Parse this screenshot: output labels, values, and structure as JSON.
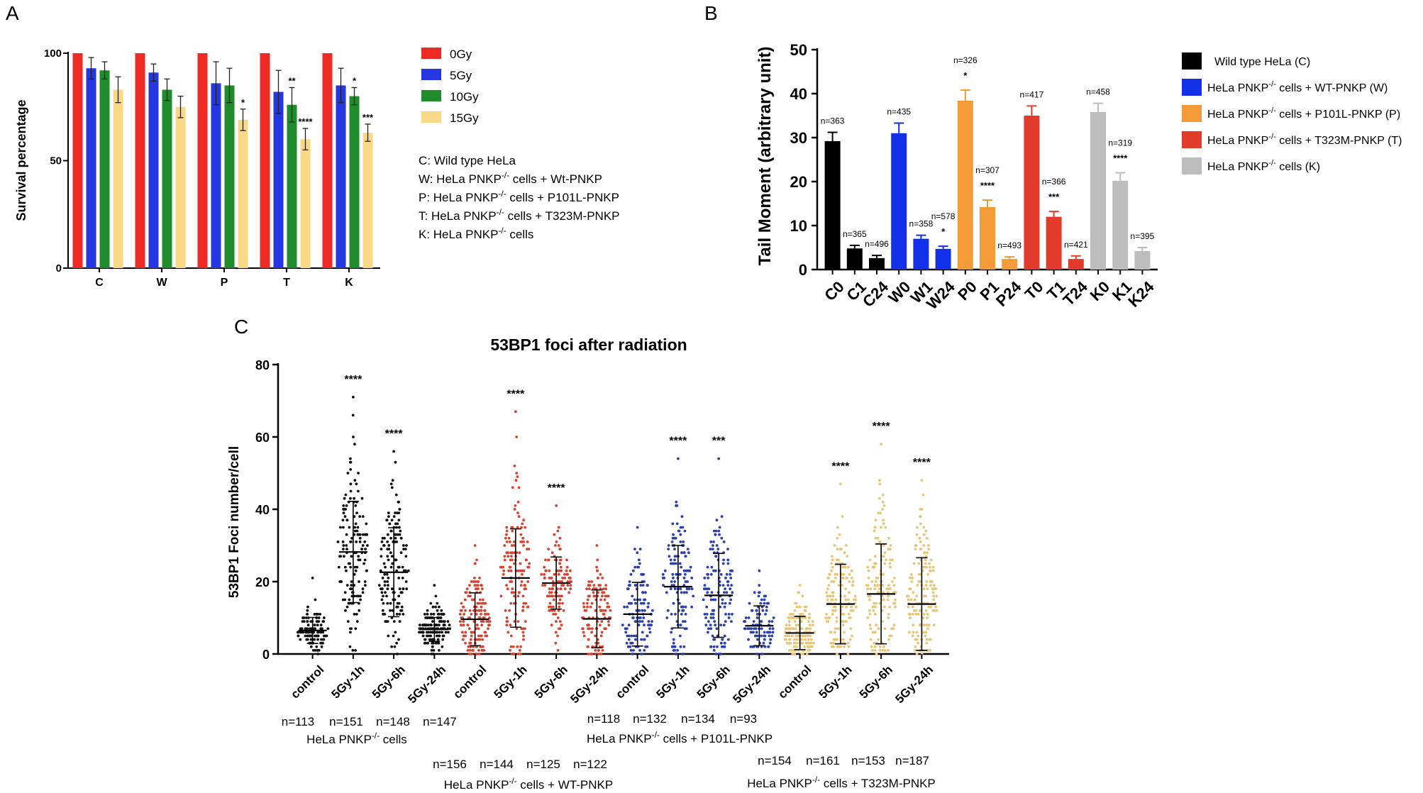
{
  "panel_labels": [
    "A",
    "B",
    "C"
  ],
  "chart_data": [
    {
      "type": "bar",
      "panel": "A",
      "title": "",
      "ylabel": "Survival percentage",
      "xlabel": "",
      "ylim": [
        0,
        100
      ],
      "yticks": [
        "0",
        "50",
        "100"
      ],
      "categories": [
        "C",
        "W",
        "P",
        "T",
        "K"
      ],
      "series": [
        {
          "name": "0Gy",
          "color": "#ee2a24",
          "values": [
            100,
            100,
            100,
            100,
            100
          ],
          "errors": [
            0,
            0,
            0,
            0,
            0
          ],
          "sig": [
            "",
            "",
            "",
            "",
            ""
          ]
        },
        {
          "name": "5Gy",
          "color": "#2437e0",
          "values": [
            93,
            91,
            86,
            82,
            85
          ],
          "errors": [
            5,
            4,
            10,
            10,
            8
          ],
          "sig": [
            "",
            "",
            "",
            "",
            ""
          ]
        },
        {
          "name": "10Gy",
          "color": "#1e8c2a",
          "values": [
            92,
            83,
            85,
            76,
            80
          ],
          "errors": [
            4,
            5,
            8,
            8,
            4
          ],
          "sig": [
            "",
            "",
            "",
            "**",
            "*"
          ]
        },
        {
          "name": "15Gy",
          "color": "#f9d986",
          "values": [
            83,
            75,
            69,
            60,
            63
          ],
          "errors": [
            6,
            5,
            5,
            5,
            4
          ],
          "sig": [
            "",
            "",
            "*",
            "****",
            "***"
          ]
        }
      ],
      "annotations": [
        "C: Wild type HeLa",
        "W: HeLa PNKP-/- cells + Wt-PNKP",
        "P: HeLa PNKP-/- cells + P101L-PNKP",
        "T: HeLa PNKP-/- cells + T323M-PNKP",
        "K: HeLa PNKP-/- cells"
      ],
      "annotation_parts": [
        {
          "pre": "C: Wild type HeLa",
          "sup": "",
          "post": ""
        },
        {
          "pre": "W: HeLa PNKP",
          "sup": "-/-",
          "post": " cells + Wt-PNKP"
        },
        {
          "pre": "P: HeLa PNKP",
          "sup": "-/-",
          "post": " cells + P101L-PNKP"
        },
        {
          "pre": "T: HeLa PNKP",
          "sup": "-/-",
          "post": " cells + T323M-PNKP"
        },
        {
          "pre": "K: HeLa PNKP",
          "sup": "-/-",
          "post": " cells"
        }
      ]
    },
    {
      "type": "bar",
      "panel": "B",
      "title": "",
      "ylabel": "Tail Moment (arbitrary unit)",
      "xlabel": "",
      "ylim": [
        0,
        50
      ],
      "yticks": [
        "0",
        "10",
        "20",
        "30",
        "40",
        "50"
      ],
      "categories": [
        "C0",
        "C1",
        "C24",
        "W0",
        "W1",
        "W24",
        "P0",
        "P1",
        "P24",
        "T0",
        "T1",
        "T24",
        "K0",
        "K1",
        "K24"
      ],
      "values": [
        29.2,
        4.8,
        2.6,
        31.0,
        7.0,
        4.7,
        38.4,
        14.2,
        2.4,
        35.0,
        12.0,
        2.4,
        35.8,
        20.2,
        4.2
      ],
      "errors": [
        2.0,
        0.7,
        0.6,
        2.3,
        0.8,
        0.6,
        2.4,
        1.6,
        0.5,
        2.2,
        1.2,
        0.7,
        2.0,
        1.8,
        0.8
      ],
      "colors": [
        "#000000",
        "#000000",
        "#000000",
        "#1230e8",
        "#1230e8",
        "#1230e8",
        "#f39b38",
        "#f39b38",
        "#f39b38",
        "#e33b2b",
        "#e33b2b",
        "#e33b2b",
        "#bdbdbd",
        "#bdbdbd",
        "#bdbdbd"
      ],
      "n": [
        "n=363",
        "n=365",
        "n=496",
        "n=435",
        "n=358",
        "n=578",
        "n=326",
        "n=307",
        "n=493",
        "n=417",
        "n=366",
        "n=421",
        "n=458",
        "n=319",
        "n=395"
      ],
      "sig": [
        "",
        "",
        "",
        "",
        "",
        "*",
        "*",
        "****",
        "",
        "",
        "***",
        "",
        "",
        "****",
        ""
      ],
      "legend": [
        {
          "pre": "Wild type HeLa (C)",
          "sup": "",
          "post": "",
          "color": "#000000"
        },
        {
          "pre": "HeLa PNKP",
          "sup": "-/-",
          "post": " cells + WT-PNKP (W)",
          "color": "#1230e8"
        },
        {
          "pre": "HeLa PNKP",
          "sup": "-/-",
          "post": " cells + P101L-PNKP (P)",
          "color": "#f39b38"
        },
        {
          "pre": "HeLa PNKP",
          "sup": "-/-",
          "post": " cells + T323M-PNKP (T)",
          "color": "#e33b2b"
        },
        {
          "pre": "HeLa PNKP",
          "sup": "-/-",
          "post": " cells (K)",
          "color": "#bdbdbd"
        }
      ]
    },
    {
      "type": "scatter",
      "panel": "C",
      "title": "53BP1 foci after radiation",
      "ylabel": "53BP1 Foci number/cell",
      "xlabel": "",
      "ylim": [
        0,
        80
      ],
      "yticks": [
        "0",
        "20",
        "40",
        "60",
        "80"
      ],
      "categories": [
        "control",
        "5Gy-1h",
        "5Gy-6h",
        "5Gy-24h",
        "control",
        "5Gy-1h",
        "5Gy-6h",
        "5Gy-24h",
        "control",
        "5Gy-1h",
        "5Gy-6h",
        "5Gy-24h",
        "control",
        "5Gy-1h",
        "5Gy-6h",
        "5Gy-24h"
      ],
      "colors": [
        "#111111",
        "#111111",
        "#111111",
        "#111111",
        "#d8432f",
        "#d8432f",
        "#d8432f",
        "#d8432f",
        "#2a3fb0",
        "#2a3fb0",
        "#2a3fb0",
        "#2a3fb0",
        "#e8c577",
        "#e8c577",
        "#e8c577",
        "#e8c577"
      ],
      "means": [
        6.5,
        28.2,
        22.6,
        6.8,
        9.6,
        21.0,
        19.6,
        9.7,
        11.0,
        18.6,
        16.2,
        7.8,
        5.8,
        13.8,
        16.6,
        13.8
      ],
      "sd": [
        3.6,
        14.0,
        12.3,
        3.3,
        7.3,
        13.6,
        7.2,
        8.0,
        8.8,
        11.4,
        11.6,
        5.5,
        4.6,
        11.0,
        13.8,
        12.8
      ],
      "max": [
        21,
        71,
        56,
        19,
        30,
        67,
        41,
        30,
        35,
        54,
        54,
        23,
        19,
        47,
        58,
        48
      ],
      "n_counts": [
        113,
        151,
        148,
        147,
        156,
        144,
        125,
        122,
        118,
        132,
        134,
        93,
        154,
        161,
        153,
        187
      ],
      "sig": [
        "",
        "****",
        "****",
        "",
        "",
        "****",
        "****",
        "",
        "",
        "****",
        "***",
        "",
        "",
        "****",
        "****",
        "****"
      ],
      "group_labels": [
        {
          "n": [
            "n=113",
            "n=151",
            "n=148",
            "n=147"
          ],
          "pre": "HeLa PNKP",
          "sup": "-/-",
          "post": " cells"
        },
        {
          "n": [
            "n=156",
            "n=144",
            "n=125",
            "n=122"
          ],
          "pre": "HeLa PNKP",
          "sup": "-/-",
          "post": " cells + WT-PNKP"
        },
        {
          "n": [
            "n=118",
            "n=132",
            "n=134",
            "n=93"
          ],
          "pre": "HeLa PNKP",
          "sup": "-/-",
          "post": " cells + P101L-PNKP"
        },
        {
          "n": [
            "n=154",
            "n=161",
            "n=153",
            "n=187"
          ],
          "pre": "HeLa PNKP",
          "sup": "-/-",
          "post": " cells + T323M-PNKP"
        }
      ]
    }
  ]
}
